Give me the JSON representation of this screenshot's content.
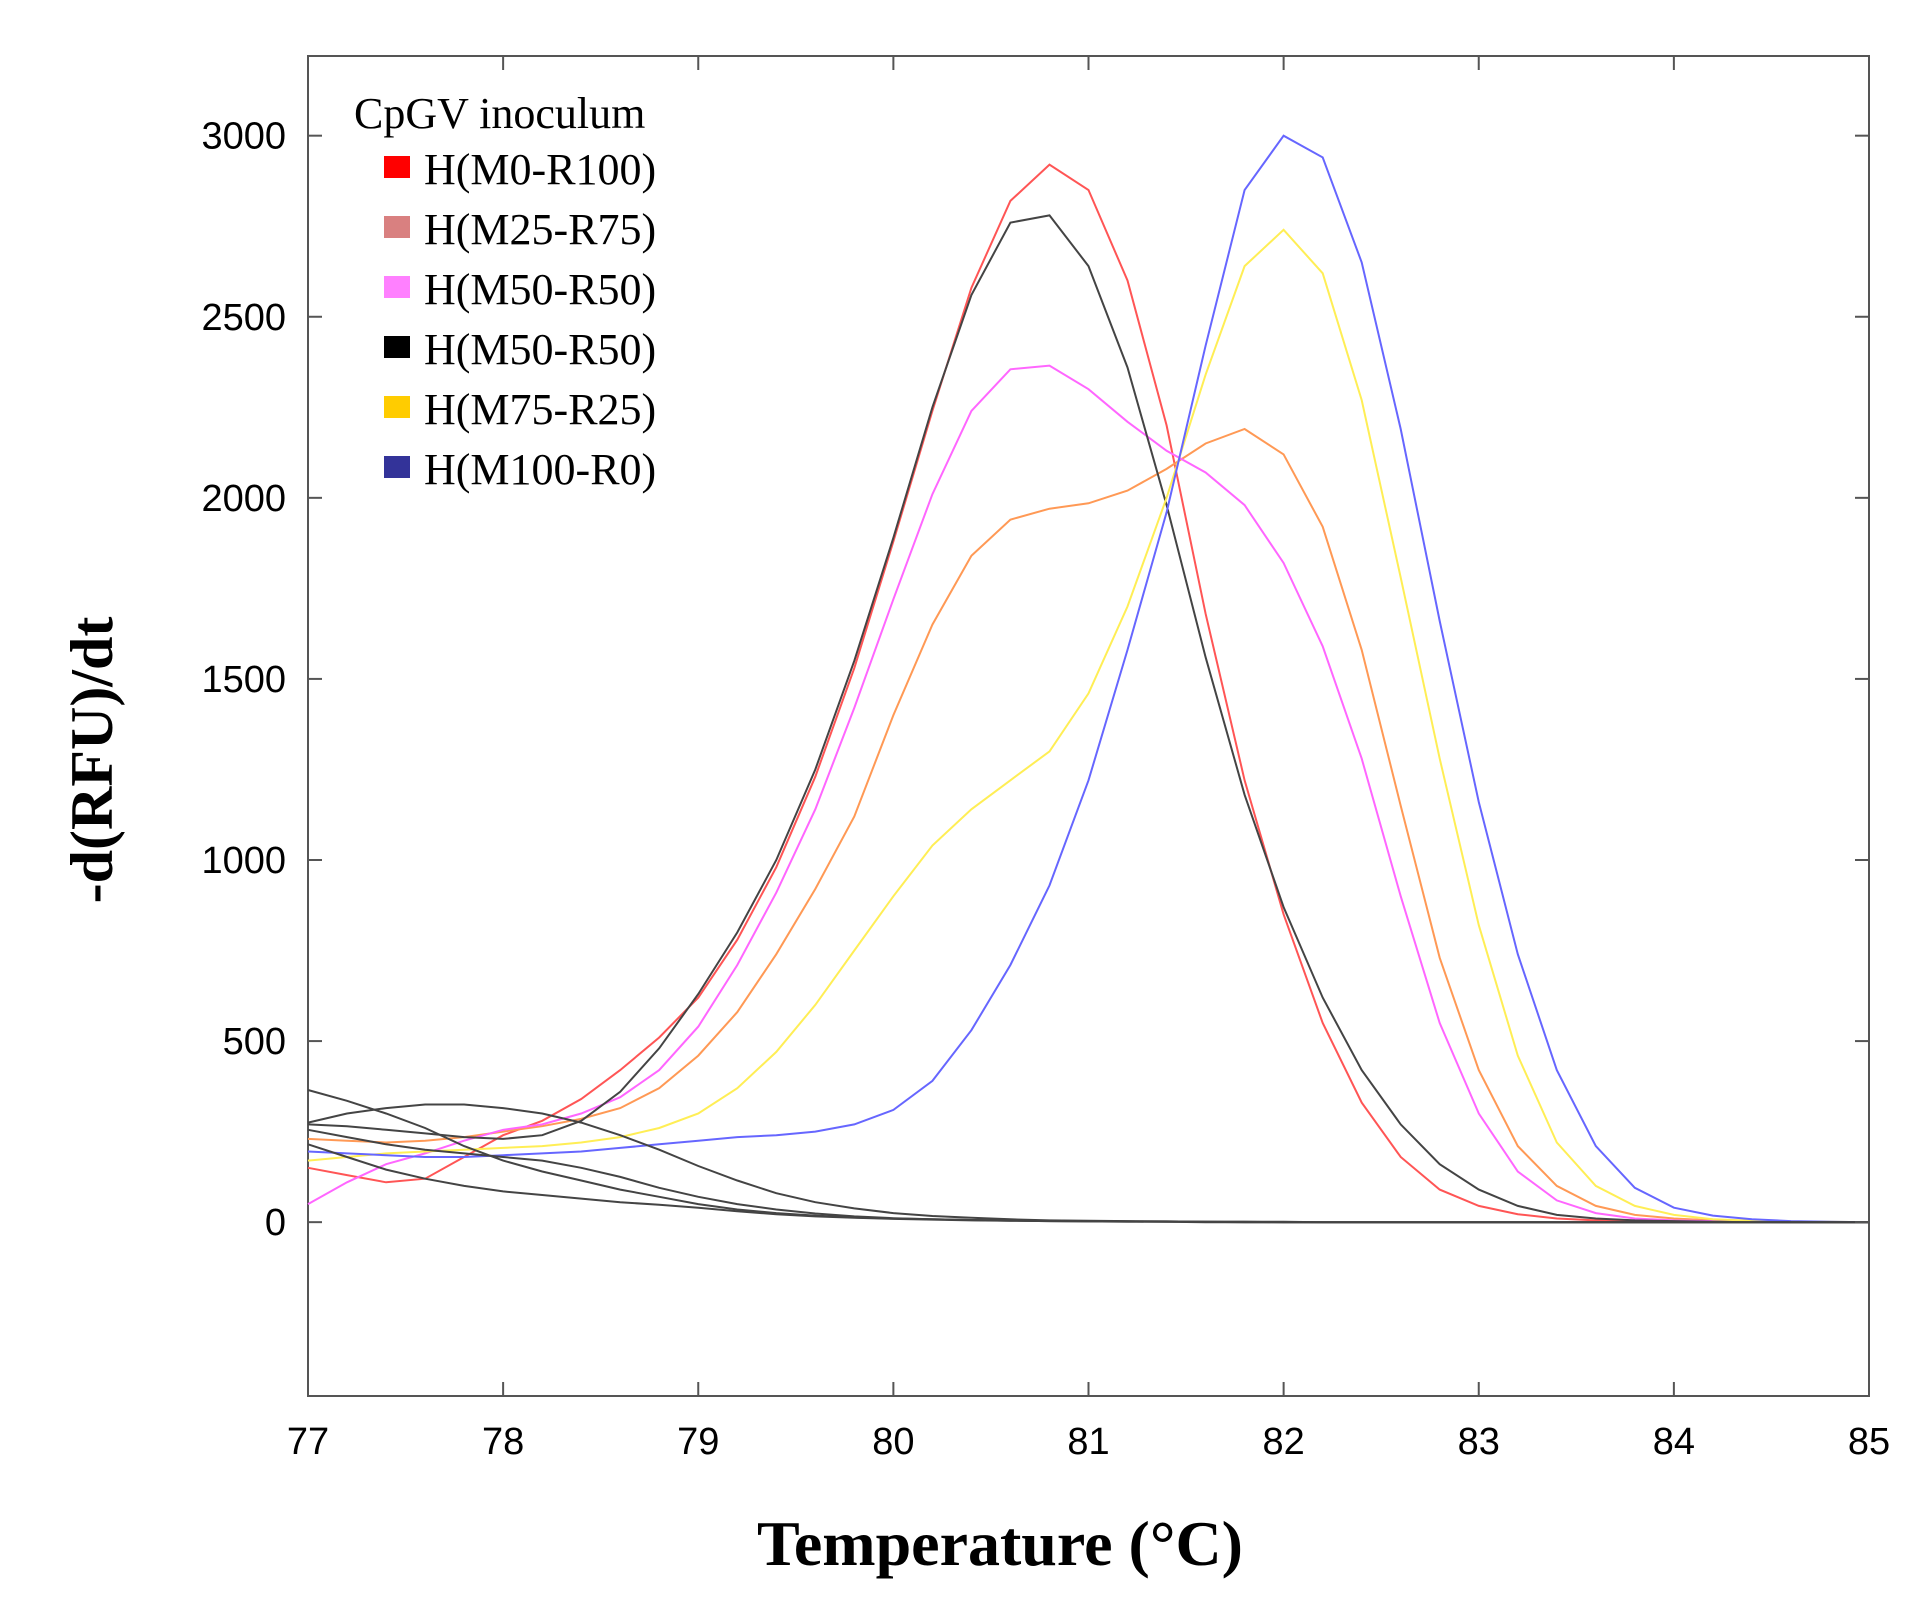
{
  "chart_data": {
    "type": "line",
    "title": "",
    "xlabel": "Temperature (°C)",
    "ylabel": "-d(RFU)/dt",
    "xlim": [
      77,
      85
    ],
    "ylim": [
      -480,
      3220
    ],
    "xticks": [
      77,
      78,
      79,
      80,
      81,
      82,
      83,
      84,
      85
    ],
    "yticks": [
      0,
      500,
      1000,
      1500,
      2000,
      2500,
      3000
    ],
    "grid": false,
    "legend": {
      "title": "CpGV inoculum",
      "position": "top-left",
      "entries": [
        {
          "label": "H(M0-R100)",
          "color": "#ff0000"
        },
        {
          "label": "H(M25-R75)",
          "color": "#d98080"
        },
        {
          "label": "H(M50-R50)",
          "color": "#ff80ff"
        },
        {
          "label": "H(M50-R50)",
          "color": "#000000"
        },
        {
          "label": "H(M75-R25)",
          "color": "#ffcc00"
        },
        {
          "label": "H(M100-R0)",
          "color": "#333399"
        }
      ]
    },
    "x": [
      77,
      77.2,
      77.4,
      77.6,
      77.8,
      78,
      78.2,
      78.4,
      78.6,
      78.8,
      79,
      79.2,
      79.4,
      79.6,
      79.8,
      80,
      80.2,
      80.4,
      80.6,
      80.8,
      81,
      81.2,
      81.4,
      81.6,
      81.8,
      82,
      82.2,
      82.4,
      82.6,
      82.8,
      83,
      83.2,
      83.4,
      83.6,
      83.8,
      84,
      84.2,
      84.4,
      84.6,
      84.8,
      85
    ],
    "series": [
      {
        "name": "H(M0-R100)",
        "color": "#ff5555",
        "values": [
          150,
          130,
          110,
          120,
          180,
          240,
          280,
          340,
          420,
          510,
          620,
          780,
          980,
          1230,
          1530,
          1880,
          2240,
          2580,
          2820,
          2920,
          2850,
          2600,
          2200,
          1680,
          1220,
          850,
          550,
          330,
          180,
          90,
          45,
          22,
          10,
          5,
          3,
          2,
          1,
          1,
          0,
          0,
          0
        ]
      },
      {
        "name": "H(M25-R75)",
        "color": "#ff9955",
        "values": [
          230,
          225,
          220,
          225,
          235,
          250,
          265,
          285,
          315,
          370,
          460,
          580,
          740,
          920,
          1120,
          1400,
          1650,
          1840,
          1940,
          1970,
          1985,
          2020,
          2080,
          2150,
          2190,
          2120,
          1920,
          1580,
          1150,
          730,
          420,
          210,
          100,
          45,
          20,
          10,
          5,
          3,
          1,
          0,
          0
        ]
      },
      {
        "name": "H(M50-R50)",
        "color": "#ff66ff",
        "values": [
          50,
          110,
          160,
          190,
          225,
          255,
          270,
          300,
          345,
          420,
          540,
          710,
          910,
          1140,
          1420,
          1720,
          2010,
          2240,
          2355,
          2365,
          2300,
          2210,
          2130,
          2070,
          1980,
          1820,
          1590,
          1280,
          900,
          550,
          300,
          140,
          60,
          25,
          10,
          5,
          3,
          1,
          0,
          0,
          0
        ]
      },
      {
        "name": "H(M50-R50)",
        "color": "#444444",
        "values": [
          270,
          265,
          255,
          245,
          235,
          230,
          240,
          280,
          360,
          480,
          630,
          800,
          1000,
          1250,
          1550,
          1890,
          2250,
          2560,
          2760,
          2780,
          2640,
          2360,
          1980,
          1560,
          1180,
          870,
          620,
          420,
          270,
          160,
          90,
          45,
          20,
          10,
          5,
          3,
          1,
          1,
          0,
          0,
          0
        ]
      },
      {
        "name": "H(M75-R25)",
        "color": "#ffee55",
        "values": [
          170,
          180,
          190,
          195,
          200,
          205,
          210,
          220,
          235,
          260,
          300,
          370,
          470,
          600,
          750,
          900,
          1040,
          1140,
          1220,
          1300,
          1460,
          1700,
          2000,
          2340,
          2640,
          2740,
          2620,
          2270,
          1780,
          1280,
          820,
          460,
          220,
          100,
          45,
          20,
          8,
          4,
          2,
          1,
          0
        ]
      },
      {
        "name": "H(M100-R0)",
        "color": "#6666ff",
        "values": [
          195,
          190,
          185,
          180,
          180,
          185,
          190,
          195,
          205,
          215,
          225,
          235,
          240,
          250,
          270,
          310,
          390,
          530,
          710,
          930,
          1220,
          1580,
          1960,
          2420,
          2850,
          3000,
          2940,
          2650,
          2190,
          1660,
          1160,
          740,
          420,
          210,
          95,
          40,
          18,
          8,
          3,
          1,
          0
        ]
      },
      {
        "name": "",
        "color": "#444444",
        "values": [
          365,
          335,
          300,
          260,
          210,
          170,
          140,
          115,
          90,
          70,
          50,
          35,
          25,
          18,
          13,
          10,
          8,
          6,
          5,
          4,
          3,
          2,
          2,
          1,
          1,
          1,
          0,
          0,
          0,
          0,
          0,
          0,
          0,
          0,
          0,
          0,
          0,
          0,
          0,
          0,
          0
        ]
      },
      {
        "name": "",
        "color": "#444444",
        "values": [
          275,
          300,
          315,
          325,
          325,
          315,
          300,
          275,
          240,
          200,
          155,
          115,
          80,
          55,
          38,
          25,
          17,
          12,
          8,
          5,
          4,
          3,
          2,
          1,
          1,
          0,
          0,
          0,
          0,
          0,
          0,
          0,
          0,
          0,
          0,
          0,
          0,
          0,
          0,
          0,
          0
        ]
      },
      {
        "name": "",
        "color": "#444444",
        "values": [
          215,
          180,
          145,
          120,
          100,
          85,
          75,
          65,
          55,
          48,
          40,
          30,
          22,
          16,
          12,
          9,
          7,
          5,
          4,
          3,
          2,
          2,
          1,
          1,
          0,
          0,
          0,
          0,
          0,
          0,
          0,
          0,
          0,
          0,
          0,
          0,
          0,
          0,
          0,
          0,
          0
        ]
      },
      {
        "name": "",
        "color": "#444444",
        "values": [
          255,
          235,
          215,
          200,
          190,
          180,
          170,
          150,
          125,
          95,
          70,
          50,
          35,
          24,
          16,
          11,
          8,
          6,
          4,
          3,
          2,
          1,
          1,
          0,
          0,
          0,
          0,
          0,
          0,
          0,
          0,
          0,
          0,
          0,
          0,
          0,
          0,
          0,
          0,
          0,
          0
        ]
      }
    ]
  }
}
